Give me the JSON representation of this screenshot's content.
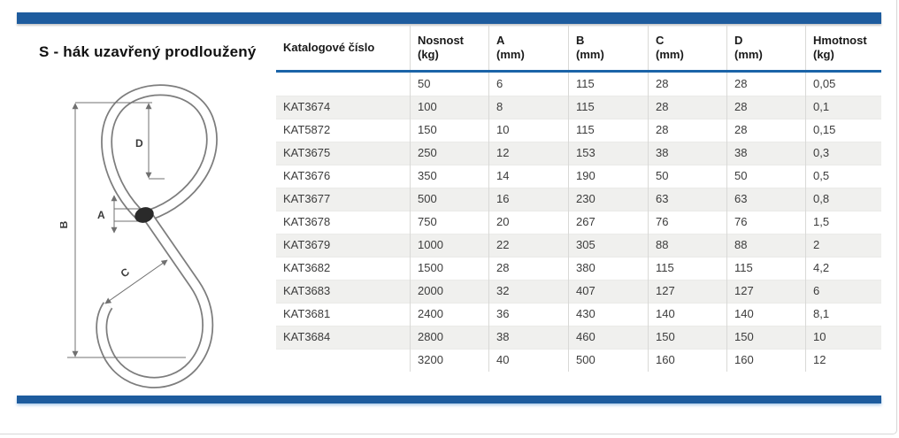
{
  "page": {
    "title": "S - hák uzavřený prodloužený",
    "accent_color": "#1e5c9e",
    "header_rule_color": "#1b64a8",
    "stripe_color": "#f0f0ee"
  },
  "diagram": {
    "labels": {
      "overall_height": "B",
      "eye_diameter": "D",
      "wire_diameter": "A",
      "opening": "C"
    }
  },
  "table": {
    "columns": [
      {
        "label": "Katalogové číslo",
        "unit": ""
      },
      {
        "label": "Nosnost",
        "unit": "(kg)"
      },
      {
        "label": "A",
        "unit": "(mm)"
      },
      {
        "label": "B",
        "unit": "(mm)"
      },
      {
        "label": "C",
        "unit": "(mm)"
      },
      {
        "label": "D",
        "unit": "(mm)"
      },
      {
        "label": "Hmotnost",
        "unit": "(kg)"
      }
    ],
    "rows": [
      [
        "",
        "50",
        "6",
        "115",
        "28",
        "28",
        "0,05"
      ],
      [
        "KAT3674",
        "100",
        "8",
        "115",
        "28",
        "28",
        "0,1"
      ],
      [
        "KAT5872",
        "150",
        "10",
        "115",
        "28",
        "28",
        "0,15"
      ],
      [
        "KAT3675",
        "250",
        "12",
        "153",
        "38",
        "38",
        "0,3"
      ],
      [
        "KAT3676",
        "350",
        "14",
        "190",
        "50",
        "50",
        "0,5"
      ],
      [
        "KAT3677",
        "500",
        "16",
        "230",
        "63",
        "63",
        "0,8"
      ],
      [
        "KAT3678",
        "750",
        "20",
        "267",
        "76",
        "76",
        "1,5"
      ],
      [
        "KAT3679",
        "1000",
        "22",
        "305",
        "88",
        "88",
        "2"
      ],
      [
        "KAT3682",
        "1500",
        "28",
        "380",
        "115",
        "115",
        "4,2"
      ],
      [
        "KAT3683",
        "2000",
        "32",
        "407",
        "127",
        "127",
        "6"
      ],
      [
        "KAT3681",
        "2400",
        "36",
        "430",
        "140",
        "140",
        "8,1"
      ],
      [
        "KAT3684",
        "2800",
        "38",
        "460",
        "150",
        "150",
        "10"
      ],
      [
        "",
        "3200",
        "40",
        "500",
        "160",
        "160",
        "12"
      ]
    ]
  }
}
